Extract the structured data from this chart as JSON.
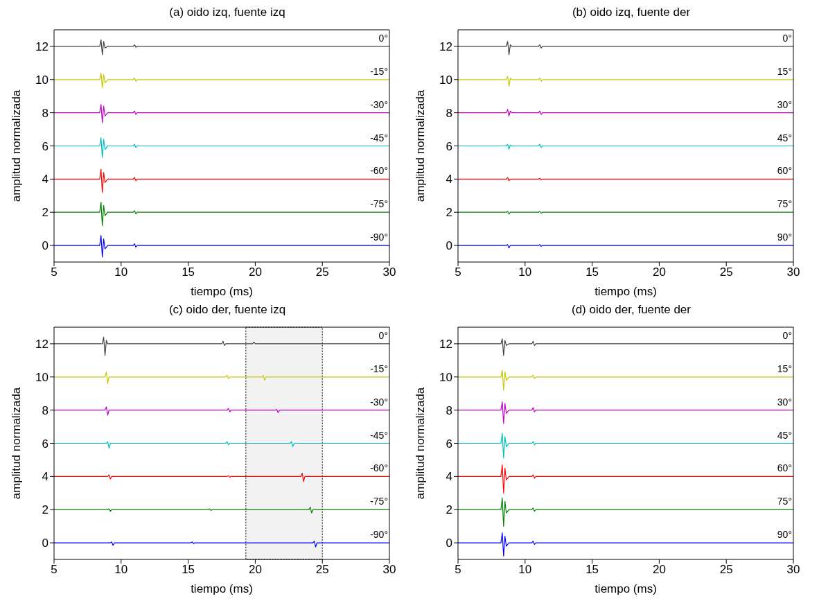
{
  "chart_data": [
    {
      "type": "line",
      "title": "(a) oido izq, fuente izq",
      "xlabel": "tiempo (ms)",
      "ylabel": "amplitud normalizada",
      "xlim": [
        5,
        30
      ],
      "xticks": [
        5,
        10,
        15,
        20,
        25,
        30
      ],
      "ylim": [
        -1,
        13
      ],
      "yticks": [
        0,
        2,
        4,
        6,
        8,
        10,
        12
      ],
      "x": [
        5,
        8.4,
        8.5,
        8.6,
        8.7,
        8.8,
        9.0,
        10.9,
        11.0,
        11.1,
        11.2,
        30
      ],
      "series": [
        {
          "name": "0°",
          "color": "#404040",
          "values": [
            12,
            12,
            12.4,
            11.5,
            12.3,
            11.9,
            12,
            12,
            12.1,
            11.95,
            12,
            12
          ]
        },
        {
          "name": "-15°",
          "color": "#c8c800",
          "values": [
            10,
            10,
            10.4,
            9.5,
            10.3,
            9.8,
            10,
            10,
            10.1,
            9.9,
            10,
            10
          ]
        },
        {
          "name": "-30°",
          "color": "#bf00bf",
          "values": [
            8,
            8,
            8.5,
            7.4,
            8.4,
            7.8,
            8,
            8,
            8.1,
            7.9,
            8,
            8
          ]
        },
        {
          "name": "-45°",
          "color": "#00bfbf",
          "values": [
            6,
            6,
            6.5,
            5.3,
            6.4,
            5.8,
            6,
            6,
            6.1,
            5.9,
            6,
            6
          ]
        },
        {
          "name": "-60°",
          "color": "#ff0000",
          "values": [
            4,
            4,
            4.6,
            3.2,
            4.4,
            3.8,
            4,
            4,
            4.1,
            3.9,
            4,
            4
          ]
        },
        {
          "name": "-75°",
          "color": "#008000",
          "values": [
            2,
            2,
            2.6,
            1.2,
            2.4,
            1.8,
            2,
            2,
            2.1,
            1.9,
            2,
            2
          ]
        },
        {
          "name": "-90°",
          "color": "#0000ff",
          "values": [
            0,
            0,
            0.6,
            -0.7,
            0.4,
            -0.2,
            0,
            0,
            0.1,
            -0.1,
            0,
            0
          ]
        }
      ]
    },
    {
      "type": "line",
      "title": "(b) oido izq, fuente der",
      "xlabel": "tiempo (ms)",
      "ylabel": "amplitud normalizada",
      "xlim": [
        5,
        30
      ],
      "xticks": [
        5,
        10,
        15,
        20,
        25,
        30
      ],
      "ylim": [
        -1,
        13
      ],
      "yticks": [
        0,
        2,
        4,
        6,
        8,
        10,
        12
      ],
      "x": [
        5,
        8.6,
        8.7,
        8.8,
        8.9,
        9.0,
        9.2,
        11.0,
        11.1,
        11.2,
        11.3,
        30
      ],
      "series": [
        {
          "name": "0°",
          "color": "#404040",
          "values": [
            12,
            12,
            12.3,
            11.5,
            12.1,
            12,
            12,
            12,
            12.1,
            11.9,
            12,
            12
          ]
        },
        {
          "name": "15°",
          "color": "#c8c800",
          "values": [
            10,
            10,
            10.2,
            9.6,
            10.1,
            10,
            10,
            10,
            10.1,
            9.9,
            10,
            10
          ]
        },
        {
          "name": "30°",
          "color": "#bf00bf",
          "values": [
            8,
            8,
            8.2,
            7.8,
            8.1,
            8,
            8,
            8,
            8.1,
            7.9,
            8,
            8
          ]
        },
        {
          "name": "45°",
          "color": "#00bfbf",
          "values": [
            6,
            6,
            6.1,
            5.8,
            6.05,
            6,
            6,
            6,
            6.1,
            5.9,
            6,
            6
          ]
        },
        {
          "name": "60°",
          "color": "#ff0000",
          "values": [
            4,
            4,
            4.1,
            3.9,
            4,
            4,
            4,
            4,
            4.05,
            3.95,
            4,
            4
          ]
        },
        {
          "name": "75°",
          "color": "#008000",
          "values": [
            2,
            2,
            2.05,
            1.9,
            2,
            2,
            2,
            2,
            2.05,
            1.95,
            2,
            2
          ]
        },
        {
          "name": "90°",
          "color": "#0000ff",
          "values": [
            0,
            0,
            0.05,
            -0.15,
            0,
            0,
            0,
            0,
            0.05,
            -0.05,
            0,
            0
          ]
        }
      ]
    },
    {
      "type": "line",
      "title": "(c) oido der, fuente izq",
      "xlabel": "tiempo (ms)",
      "ylabel": "amplitud normalizada",
      "xlim": [
        5,
        30
      ],
      "xticks": [
        5,
        10,
        15,
        20,
        25,
        30
      ],
      "ylim": [
        -1,
        13
      ],
      "yticks": [
        0,
        2,
        4,
        6,
        8,
        10,
        12
      ],
      "bands": [
        {
          "axis": "x",
          "from": 19.3,
          "to": 25,
          "color": "#000000"
        }
      ],
      "series": [
        {
          "name": "0°",
          "color": "#404040",
          "x": [
            5,
            8.6,
            8.7,
            8.8,
            8.9,
            9.0,
            17.5,
            17.6,
            17.7,
            17.8,
            19.8,
            19.9,
            20.0,
            30
          ],
          "values": [
            12,
            12,
            12.4,
            11.3,
            12.2,
            12,
            12,
            12.15,
            11.9,
            12,
            12,
            12.1,
            12,
            12
          ]
        },
        {
          "name": "-15°",
          "color": "#c8c800",
          "x": [
            5,
            8.8,
            8.9,
            9.0,
            9.1,
            17.8,
            17.9,
            18.0,
            18.1,
            20.5,
            20.6,
            20.7,
            20.8,
            30
          ],
          "values": [
            10,
            10,
            10.3,
            9.6,
            10,
            10,
            10.1,
            9.9,
            10,
            10,
            10.1,
            9.8,
            10,
            10
          ]
        },
        {
          "name": "-30°",
          "color": "#bf00bf",
          "x": [
            5,
            8.8,
            8.9,
            9.0,
            9.1,
            17.9,
            18.0,
            18.1,
            18.2,
            21.5,
            21.6,
            21.7,
            21.8,
            30
          ],
          "values": [
            8,
            8,
            8.2,
            7.7,
            8,
            8,
            8.1,
            7.9,
            8,
            8,
            8.05,
            7.85,
            8,
            8
          ]
        },
        {
          "name": "-45°",
          "color": "#00bfbf",
          "x": [
            5,
            8.9,
            9.0,
            9.1,
            9.2,
            17.8,
            17.9,
            18.0,
            18.1,
            22.6,
            22.7,
            22.8,
            22.9,
            30
          ],
          "values": [
            6,
            6,
            6.1,
            5.7,
            6,
            6,
            6.1,
            5.9,
            6,
            6,
            6.1,
            5.8,
            6,
            6
          ]
        },
        {
          "name": "-60°",
          "color": "#ff0000",
          "x": [
            5,
            9.0,
            9.1,
            9.2,
            9.3,
            17.9,
            18.0,
            18.1,
            18.2,
            23.4,
            23.5,
            23.6,
            23.7,
            30
          ],
          "values": [
            4,
            4,
            4.1,
            3.85,
            4,
            4,
            4.05,
            3.95,
            4,
            4,
            4.2,
            3.7,
            4,
            4
          ]
        },
        {
          "name": "-75°",
          "color": "#008000",
          "x": [
            5,
            9.0,
            9.1,
            9.2,
            9.3,
            16.5,
            16.6,
            16.7,
            16.8,
            24.0,
            24.1,
            24.2,
            24.3,
            30
          ],
          "values": [
            2,
            2,
            2.05,
            1.9,
            2,
            2,
            2.05,
            1.95,
            2,
            2,
            2.15,
            1.8,
            2,
            2
          ]
        },
        {
          "name": "-90°",
          "color": "#0000ff",
          "x": [
            5,
            9.2,
            9.3,
            9.4,
            9.5,
            15.2,
            15.3,
            15.4,
            15.5,
            24.3,
            24.4,
            24.5,
            24.6,
            30
          ],
          "values": [
            0,
            0,
            0.05,
            -0.15,
            0,
            0,
            0.05,
            -0.05,
            0,
            0,
            0.1,
            -0.25,
            0,
            0
          ]
        }
      ]
    },
    {
      "type": "line",
      "title": "(d) oido der, fuente der",
      "xlabel": "tiempo (ms)",
      "ylabel": "amplitud normalizada",
      "xlim": [
        5,
        30
      ],
      "xticks": [
        5,
        10,
        15,
        20,
        25,
        30
      ],
      "ylim": [
        -1,
        13
      ],
      "yticks": [
        0,
        2,
        4,
        6,
        8,
        10,
        12
      ],
      "x": [
        5,
        8.2,
        8.3,
        8.4,
        8.5,
        8.6,
        8.8,
        10.5,
        10.6,
        10.7,
        10.8,
        30
      ],
      "series": [
        {
          "name": "0°",
          "color": "#404040",
          "values": [
            12,
            12,
            12.3,
            11.3,
            12.2,
            11.9,
            12,
            12,
            12.15,
            11.9,
            12,
            12
          ]
        },
        {
          "name": "15°",
          "color": "#c8c800",
          "values": [
            10,
            10,
            10.4,
            9.2,
            10.3,
            9.8,
            10,
            10,
            10.1,
            9.9,
            10,
            10
          ]
        },
        {
          "name": "30°",
          "color": "#bf00bf",
          "values": [
            8,
            8,
            8.5,
            7.2,
            8.4,
            7.8,
            8,
            8,
            8.15,
            7.9,
            8,
            8
          ]
        },
        {
          "name": "45°",
          "color": "#00bfbf",
          "values": [
            6,
            6,
            6.6,
            5.1,
            6.4,
            5.8,
            6,
            6,
            6.1,
            5.9,
            6,
            6
          ]
        },
        {
          "name": "60°",
          "color": "#ff0000",
          "values": [
            4,
            4,
            4.7,
            3.0,
            4.5,
            3.8,
            4,
            4,
            4.1,
            3.9,
            4,
            4
          ]
        },
        {
          "name": "75°",
          "color": "#008000",
          "values": [
            2,
            2,
            2.7,
            1.0,
            2.5,
            1.8,
            2,
            2,
            2.1,
            1.9,
            2,
            2
          ]
        },
        {
          "name": "90°",
          "color": "#0000ff",
          "values": [
            0,
            0,
            0.6,
            -0.8,
            0.4,
            -0.2,
            0,
            0,
            0.1,
            -0.1,
            0,
            0
          ]
        }
      ]
    }
  ]
}
